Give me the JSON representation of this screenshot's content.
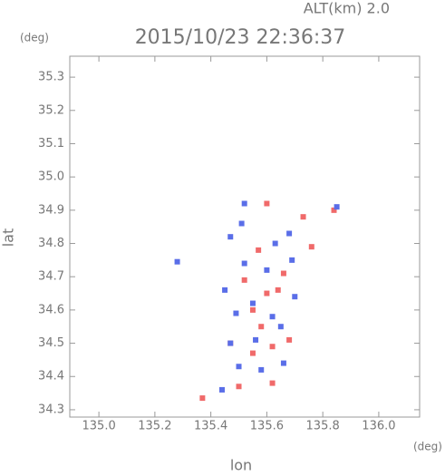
{
  "chart_data": {
    "type": "scatter",
    "title": "2015/10/23 22:36:37",
    "subtitle": "ALT(km) 2.0",
    "x_label": "lon",
    "y_label": "lat",
    "x_unit": "(deg)",
    "y_unit": "(deg)",
    "xlim": [
      134.896,
      136.146
    ],
    "ylim": [
      34.278,
      35.363
    ],
    "xticks": [
      {
        "value": 135,
        "label": "135.0"
      },
      135.2,
      135.4,
      135.6,
      135.8,
      {
        "value": 136,
        "label": "136.0"
      }
    ],
    "yticks": [
      34.3,
      34.4,
      34.5,
      34.6,
      34.7,
      34.8,
      34.9,
      {
        "value": 35,
        "label": "35.0"
      },
      35.1,
      35.2,
      35.3
    ],
    "series": [
      {
        "color": "#f06a6a",
        "x": [
          135.37,
          135.6,
          135.84,
          135.73,
          135.76,
          135.6,
          135.55,
          135.64,
          135.58,
          135.62,
          135.55,
          135.62,
          135.5,
          135.68,
          135.57,
          135.52,
          135.66,
          135.47
        ],
        "y": [
          34.335,
          34.92,
          34.9,
          34.88,
          34.79,
          34.65,
          34.6,
          34.66,
          34.55,
          34.49,
          34.47,
          34.38,
          34.37,
          34.51,
          34.78,
          34.69,
          34.71,
          34.5
        ]
      },
      {
        "color": "#5a6ee8",
        "x": [
          135.52,
          135.51,
          135.47,
          135.68,
          135.63,
          135.69,
          135.44,
          135.47,
          135.5,
          135.58,
          135.66,
          135.55,
          135.62,
          135.45,
          135.49,
          135.6,
          135.52,
          135.28,
          135.65,
          135.7,
          135.85,
          135.56
        ],
        "y": [
          34.92,
          34.86,
          34.82,
          34.83,
          34.8,
          34.75,
          34.36,
          34.5,
          34.43,
          34.42,
          34.44,
          34.62,
          34.58,
          34.66,
          34.59,
          34.72,
          34.74,
          34.745,
          34.55,
          34.64,
          34.91,
          34.51
        ]
      }
    ]
  }
}
